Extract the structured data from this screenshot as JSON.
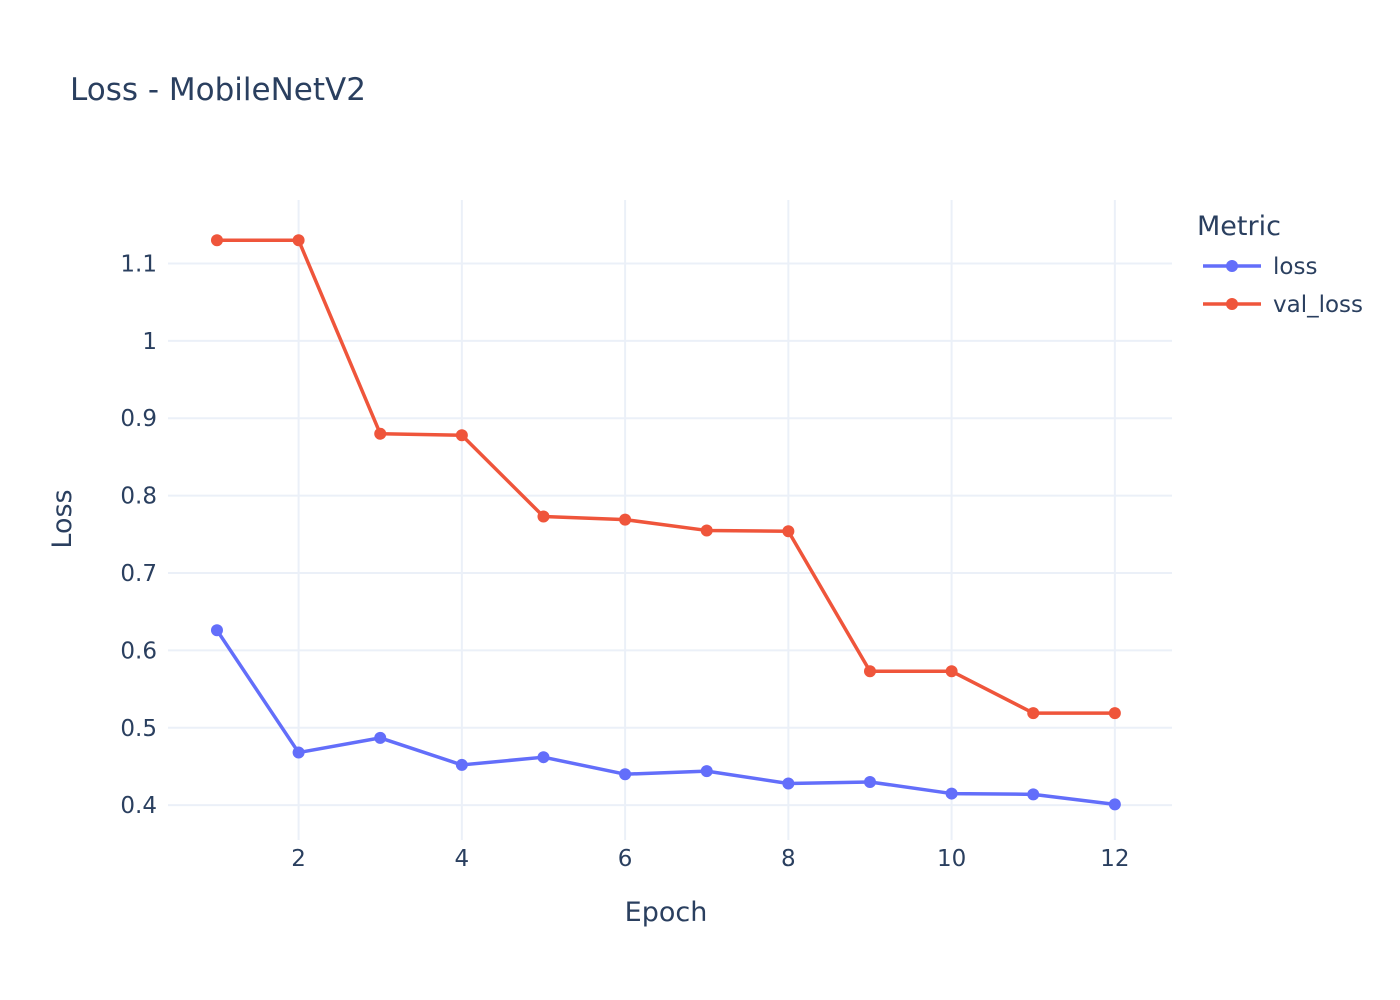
{
  "chart_data": {
    "type": "line",
    "title": "Loss - MobileNetV2",
    "xlabel": "Epoch",
    "ylabel": "Loss",
    "x": [
      1,
      2,
      3,
      4,
      5,
      6,
      7,
      8,
      9,
      10,
      11,
      12
    ],
    "x_ticks": [
      2,
      4,
      6,
      8,
      10,
      12
    ],
    "y_ticks": [
      0.4,
      0.5,
      0.6,
      0.7,
      0.8,
      0.9,
      1,
      1.1
    ],
    "y_tick_labels": [
      "0.4",
      "0.5",
      "0.6",
      "0.7",
      "0.8",
      "0.9",
      "1",
      "1.1"
    ],
    "xlim": [
      0.4,
      12.7
    ],
    "ylim": [
      0.355,
      1.182
    ],
    "grid": true,
    "legend": {
      "title": "Metric",
      "placement": "top-right, outside plot"
    },
    "series": [
      {
        "name": "loss",
        "color": "#636efa",
        "values": [
          0.626,
          0.468,
          0.487,
          0.452,
          0.462,
          0.44,
          0.444,
          0.428,
          0.43,
          0.415,
          0.414,
          0.401
        ]
      },
      {
        "name": "val_loss",
        "color": "#ef553b",
        "values": [
          1.13,
          1.13,
          0.88,
          0.878,
          0.773,
          0.769,
          0.755,
          0.754,
          0.573,
          0.573,
          0.519,
          0.519
        ]
      }
    ]
  }
}
